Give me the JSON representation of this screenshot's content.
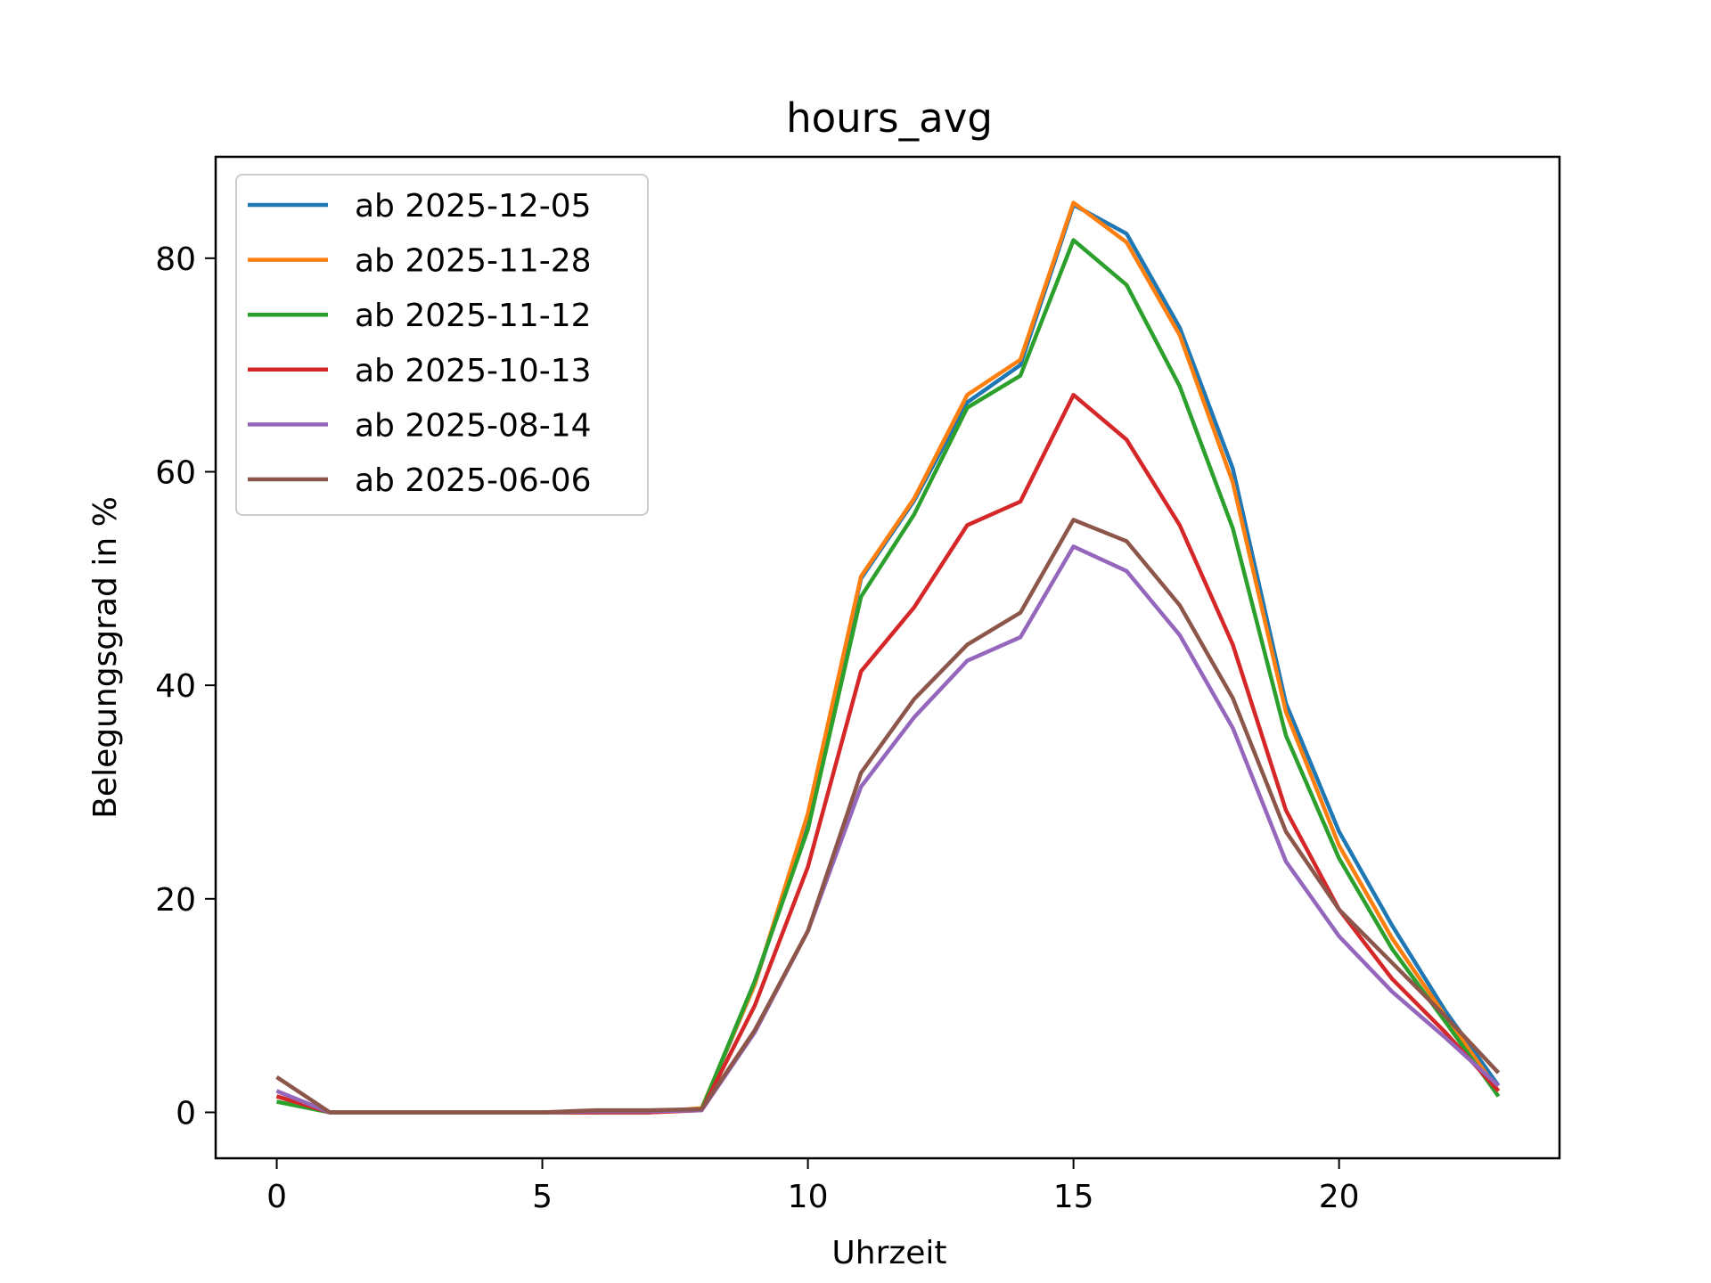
{
  "chart_data": {
    "type": "line",
    "title": "hours_avg",
    "xlabel": "Uhrzeit",
    "ylabel": "Belegungsgrad in %",
    "xlim": [
      -1.15,
      24.15
    ],
    "ylim": [
      -4.3,
      89.5
    ],
    "xticks": [
      0,
      5,
      10,
      15,
      20
    ],
    "yticks": [
      0,
      20,
      40,
      60,
      80
    ],
    "grid": false,
    "legend_position": "upper left",
    "x": [
      0,
      1,
      2,
      3,
      4,
      5,
      6,
      7,
      8,
      9,
      10,
      11,
      12,
      13,
      14,
      15,
      16,
      17,
      18,
      19,
      20,
      21,
      22,
      23
    ],
    "series": [
      {
        "name": "ab 2025-12-05",
        "color": "#1f77b4",
        "values": [
          1.5,
          0,
          0,
          0,
          0,
          0,
          0,
          0,
          0.3,
          12.0,
          27.5,
          50.0,
          57.3,
          66.5,
          70.0,
          85.0,
          82.3,
          73.5,
          60.3,
          38.3,
          26.3,
          17.5,
          9.5,
          2.5
        ]
      },
      {
        "name": "ab 2025-11-28",
        "color": "#ff7f0e",
        "values": [
          1.5,
          0,
          0,
          0,
          0,
          0,
          0,
          0,
          0.4,
          12.0,
          28.0,
          50.2,
          57.5,
          67.2,
          70.5,
          85.2,
          81.5,
          72.8,
          59.0,
          37.5,
          25.0,
          16.3,
          9.0,
          2.0
        ]
      },
      {
        "name": "ab 2025-11-12",
        "color": "#2ca02c",
        "values": [
          1.0,
          0,
          0,
          0,
          0,
          0,
          0,
          0,
          0.3,
          12.3,
          26.5,
          48.3,
          56.0,
          66.0,
          69.0,
          81.7,
          77.5,
          68.0,
          54.7,
          35.3,
          23.8,
          15.3,
          8.5,
          1.5
        ]
      },
      {
        "name": "ab 2025-10-13",
        "color": "#d62728",
        "values": [
          1.5,
          0,
          0,
          0,
          0,
          0,
          0,
          0,
          0.2,
          10.0,
          23.0,
          41.3,
          47.3,
          55.0,
          57.2,
          67.2,
          63.0,
          55.0,
          43.8,
          28.3,
          19.0,
          12.5,
          7.5,
          2.0
        ]
      },
      {
        "name": "ab 2025-08-14",
        "color": "#9467bd",
        "values": [
          2.0,
          0,
          0,
          0,
          0,
          0,
          0.1,
          0.1,
          0.2,
          7.5,
          17.0,
          30.5,
          37.0,
          42.3,
          44.5,
          53.0,
          50.7,
          44.7,
          36.0,
          23.5,
          16.5,
          11.3,
          7.0,
          2.5
        ]
      },
      {
        "name": "ab 2025-06-06",
        "color": "#8c564b",
        "values": [
          3.3,
          0,
          0,
          0,
          0,
          0,
          0.2,
          0.2,
          0.3,
          7.7,
          17.0,
          31.8,
          38.7,
          43.8,
          46.8,
          55.5,
          53.5,
          47.5,
          38.8,
          26.3,
          19.0,
          14.0,
          9.0,
          3.7
        ]
      }
    ]
  }
}
